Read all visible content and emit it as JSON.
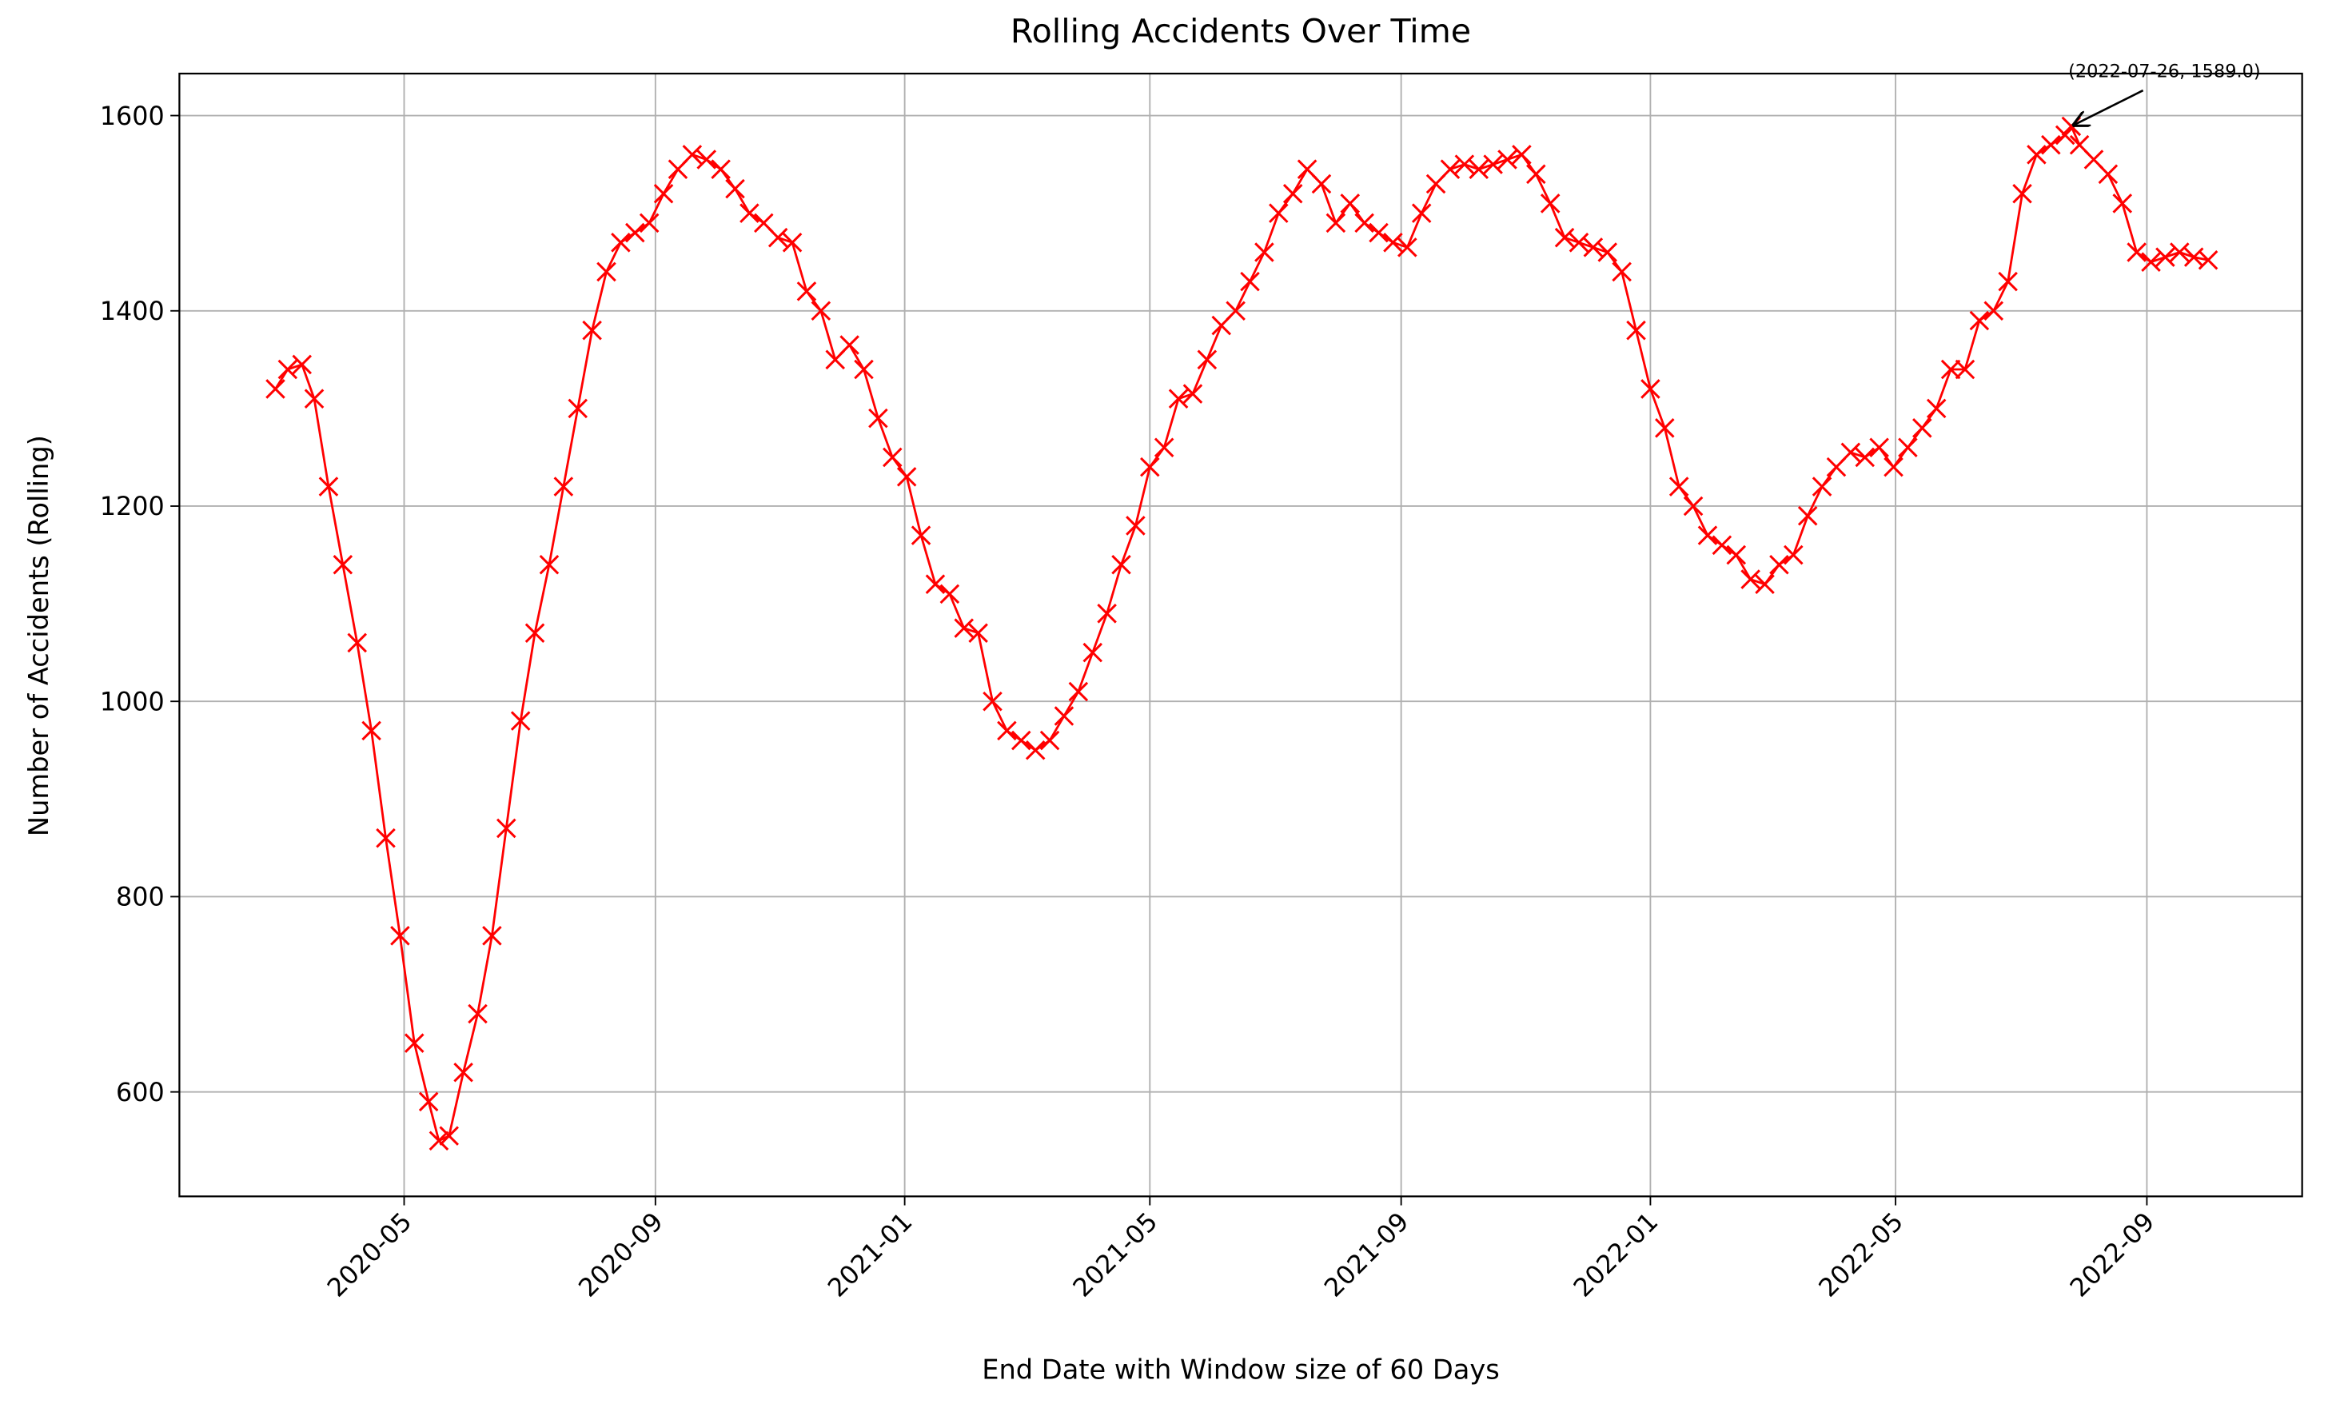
{
  "chart_data": {
    "type": "line",
    "title": "Rolling Accidents Over Time",
    "x_label": "End Date with Window size of 60 Days",
    "y_label": "Number of Accidents (Rolling)",
    "color": "#ff0000",
    "marker": "x",
    "grid": true,
    "xlim": [
      "2020-01-12",
      "2022-11-16"
    ],
    "ylim": [
      493,
      1643
    ],
    "xticks": [
      {
        "value": "2020-05-01",
        "label": "2020-05"
      },
      {
        "value": "2020-09-01",
        "label": "2020-09"
      },
      {
        "value": "2021-01-01",
        "label": "2021-01"
      },
      {
        "value": "2021-05-01",
        "label": "2021-05"
      },
      {
        "value": "2021-09-01",
        "label": "2021-09"
      },
      {
        "value": "2022-01-01",
        "label": "2022-01"
      },
      {
        "value": "2022-05-01",
        "label": "2022-05"
      },
      {
        "value": "2022-09-01",
        "label": "2022-09"
      }
    ],
    "yticks": [
      600,
      800,
      1000,
      1200,
      1400,
      1600
    ],
    "x": [
      "2020-02-28",
      "2020-03-05",
      "2020-03-12",
      "2020-03-18",
      "2020-03-25",
      "2020-04-01",
      "2020-04-08",
      "2020-04-15",
      "2020-04-22",
      "2020-04-29",
      "2020-05-06",
      "2020-05-13",
      "2020-05-18",
      "2020-05-23",
      "2020-05-30",
      "2020-06-06",
      "2020-06-13",
      "2020-06-20",
      "2020-06-27",
      "2020-07-04",
      "2020-07-11",
      "2020-07-18",
      "2020-07-25",
      "2020-08-01",
      "2020-08-08",
      "2020-08-15",
      "2020-08-22",
      "2020-08-29",
      "2020-09-05",
      "2020-09-12",
      "2020-09-19",
      "2020-09-26",
      "2020-10-03",
      "2020-10-10",
      "2020-10-17",
      "2020-10-24",
      "2020-10-31",
      "2020-11-07",
      "2020-11-14",
      "2020-11-21",
      "2020-11-28",
      "2020-12-05",
      "2020-12-12",
      "2020-12-19",
      "2020-12-26",
      "2021-01-02",
      "2021-01-09",
      "2021-01-16",
      "2021-01-23",
      "2021-01-30",
      "2021-02-06",
      "2021-02-13",
      "2021-02-20",
      "2021-02-27",
      "2021-03-06",
      "2021-03-13",
      "2021-03-20",
      "2021-03-27",
      "2021-04-03",
      "2021-04-10",
      "2021-04-17",
      "2021-04-24",
      "2021-05-01",
      "2021-05-08",
      "2021-05-15",
      "2021-05-22",
      "2021-05-29",
      "2021-06-05",
      "2021-06-12",
      "2021-06-19",
      "2021-06-26",
      "2021-07-03",
      "2021-07-10",
      "2021-07-17",
      "2021-07-24",
      "2021-07-31",
      "2021-08-07",
      "2021-08-14",
      "2021-08-21",
      "2021-08-28",
      "2021-09-04",
      "2021-09-11",
      "2021-09-18",
      "2021-09-25",
      "2021-10-02",
      "2021-10-09",
      "2021-10-16",
      "2021-10-23",
      "2021-10-30",
      "2021-11-06",
      "2021-11-13",
      "2021-11-20",
      "2021-11-27",
      "2021-12-04",
      "2021-12-11",
      "2021-12-18",
      "2021-12-25",
      "2022-01-01",
      "2022-01-08",
      "2022-01-15",
      "2022-01-22",
      "2022-01-29",
      "2022-02-05",
      "2022-02-12",
      "2022-02-19",
      "2022-02-26",
      "2022-03-05",
      "2022-03-12",
      "2022-03-19",
      "2022-03-26",
      "2022-04-02",
      "2022-04-09",
      "2022-04-16",
      "2022-04-23",
      "2022-04-30",
      "2022-05-07",
      "2022-05-14",
      "2022-05-21",
      "2022-05-28",
      "2022-06-04",
      "2022-06-11",
      "2022-06-18",
      "2022-06-25",
      "2022-07-02",
      "2022-07-09",
      "2022-07-16",
      "2022-07-23",
      "2022-07-26",
      "2022-07-30",
      "2022-08-06",
      "2022-08-13",
      "2022-08-20",
      "2022-08-27",
      "2022-09-03",
      "2022-09-10",
      "2022-09-17",
      "2022-09-24",
      "2022-10-01"
    ],
    "values": [
      1320,
      1340,
      1345,
      1310,
      1220,
      1140,
      1060,
      970,
      860,
      760,
      650,
      590,
      550,
      555,
      620,
      680,
      760,
      870,
      980,
      1070,
      1140,
      1220,
      1300,
      1380,
      1440,
      1470,
      1480,
      1490,
      1520,
      1545,
      1560,
      1555,
      1545,
      1525,
      1500,
      1490,
      1475,
      1470,
      1420,
      1400,
      1350,
      1365,
      1340,
      1290,
      1250,
      1230,
      1170,
      1120,
      1110,
      1075,
      1070,
      1000,
      970,
      960,
      950,
      960,
      985,
      1010,
      1050,
      1090,
      1140,
      1180,
      1240,
      1260,
      1310,
      1315,
      1350,
      1385,
      1400,
      1430,
      1460,
      1500,
      1520,
      1545,
      1530,
      1490,
      1510,
      1490,
      1480,
      1470,
      1465,
      1500,
      1530,
      1545,
      1550,
      1545,
      1550,
      1555,
      1560,
      1540,
      1510,
      1475,
      1470,
      1465,
      1460,
      1440,
      1380,
      1320,
      1280,
      1220,
      1200,
      1170,
      1160,
      1150,
      1125,
      1120,
      1140,
      1150,
      1190,
      1220,
      1240,
      1255,
      1250,
      1260,
      1240,
      1260,
      1280,
      1300,
      1340,
      1340,
      1390,
      1400,
      1430,
      1520,
      1560,
      1570,
      1580,
      1589,
      1570,
      1555,
      1540,
      1510,
      1460,
      1450,
      1455,
      1460,
      1455,
      1452
    ],
    "annotation": {
      "text": "(2022-07-26, 1589.0)",
      "x": "2022-07-26",
      "y": 1589
    }
  }
}
